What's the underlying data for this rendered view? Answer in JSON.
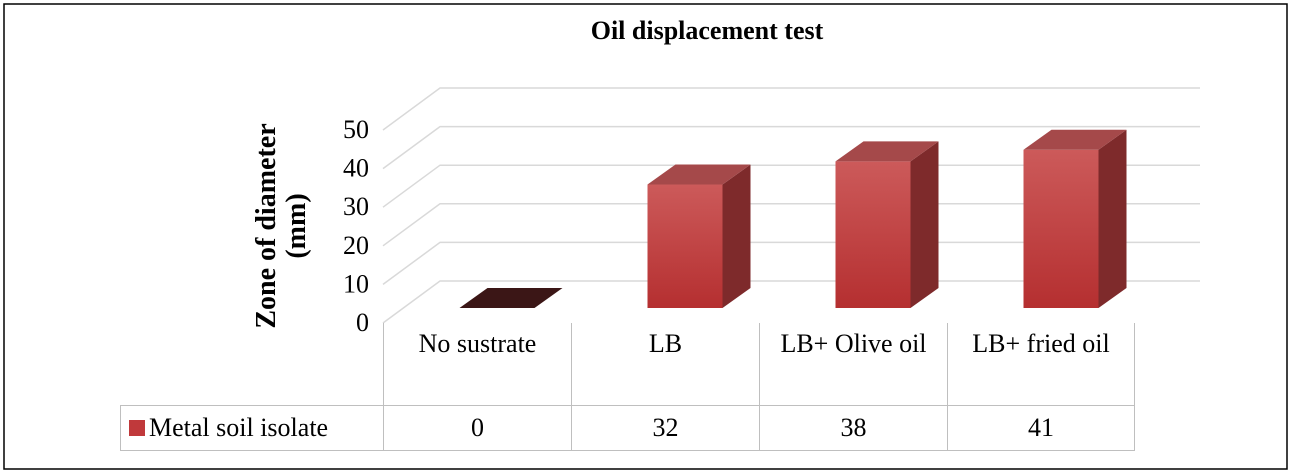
{
  "chart_data": {
    "type": "bar3d",
    "title": "Oil displacement test",
    "y_label": "Zone of diameter (mm)",
    "categories": [
      "No sustrate",
      "LB",
      "LB+ Olive oil",
      "LB+ fried oil"
    ],
    "series": [
      {
        "name": "Metal soil isolate",
        "color": "#c0393b",
        "values": [
          0,
          32,
          38,
          41
        ]
      }
    ],
    "ylim": [
      0,
      50
    ],
    "yticks": [
      0,
      10,
      20,
      30,
      40,
      50
    ],
    "grid": true,
    "data_table": true
  }
}
